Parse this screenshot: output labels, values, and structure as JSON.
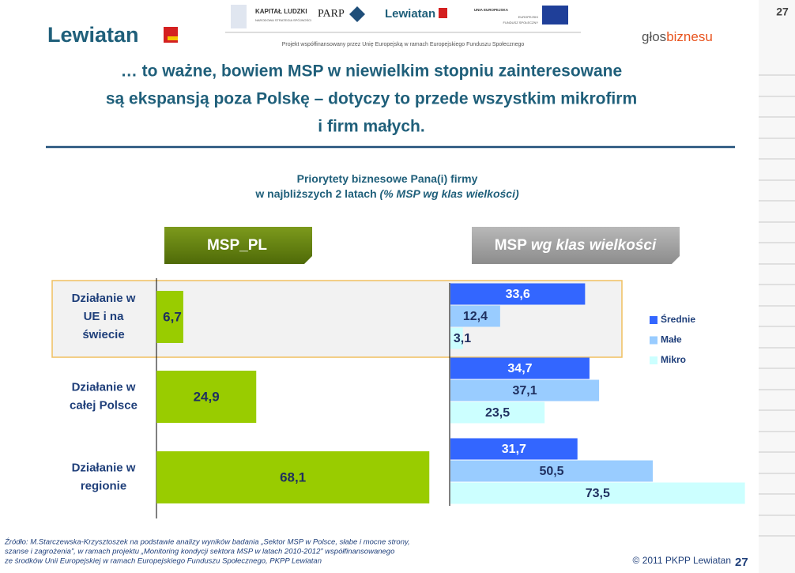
{
  "page_number": "27",
  "header": {
    "logo": "Lewiatan",
    "partners": [
      "KAPITAŁ LUDZKI",
      "NARODOWA STRATEGIA SPÓJNOŚCI",
      "PARP",
      "Lewiatan",
      "UNIA EUROPEJSKA",
      "EUROPEJSKI",
      "FUNDUSZ SPOŁECZNY"
    ],
    "funding": "Projekt współfinansowany przez Unię Europejską w ramach Europejskiego Funduszu Społecznego",
    "right_logo": [
      "głos",
      "biznesu"
    ]
  },
  "headline": [
    "… to ważne, bowiem MSP w niewielkim stopniu zainteresowane",
    "są ekspansją poza Polskę – dotyczy to przede wszystkim mikrofirm",
    "i firm małych."
  ],
  "chart_title": [
    "Priorytety biznesowe Pana(i) firmy",
    "w najbliższych 2 latach",
    "(% MSP wg klas wielkości)"
  ],
  "chart_data": [
    {
      "type": "bar",
      "label": [
        "MSP_PL"
      ],
      "categories": [
        [
          "Działanie w",
          "UE i na",
          "świecie"
        ],
        [
          "Działanie w",
          "całej Polsce"
        ],
        [
          "Działanie w",
          "regionie"
        ]
      ],
      "values": [
        6.7,
        24.9,
        68.1
      ],
      "value_labels": [
        "6,7",
        "24,9",
        "68,1"
      ],
      "color": "#99cc00"
    },
    {
      "type": "grouped_bar",
      "label": [
        "MSP ",
        "wg klas wielkości"
      ],
      "legend": "right",
      "series": [
        {
          "name": "Średnie",
          "color": "#3366ff",
          "values": [
            33.6,
            34.7,
            31.7
          ],
          "value_labels": [
            "33,6",
            "34,7",
            "31,7"
          ]
        },
        {
          "name": "Małe",
          "color": "#99ccff",
          "values": [
            12.4,
            37.1,
            50.5
          ],
          "value_labels": [
            "12,4",
            "37,1",
            "50,5"
          ]
        },
        {
          "name": "Mikro",
          "color": "#ccffff",
          "values": [
            3.1,
            23.5,
            73.5
          ],
          "value_labels": [
            "3,1",
            "23,5",
            "73,5"
          ]
        }
      ]
    }
  ],
  "source": [
    "Źródło: M.Starczewska-Krzysztoszek na podstawie analizy wyników badania „Sektor MSP w Polsce, słabe i mocne strony,",
    "szanse i zagrożenia”, w ramach projektu „Monitoring kondycji sektora MSP w latach 2010-2012” współfinansowanego",
    "ze środków Unii Europejskiej w ramach Europejskiego Funduszu Społecznego, PKPP Lewiatan"
  ],
  "copyright": "© 2011 PKPP Lewiatan"
}
